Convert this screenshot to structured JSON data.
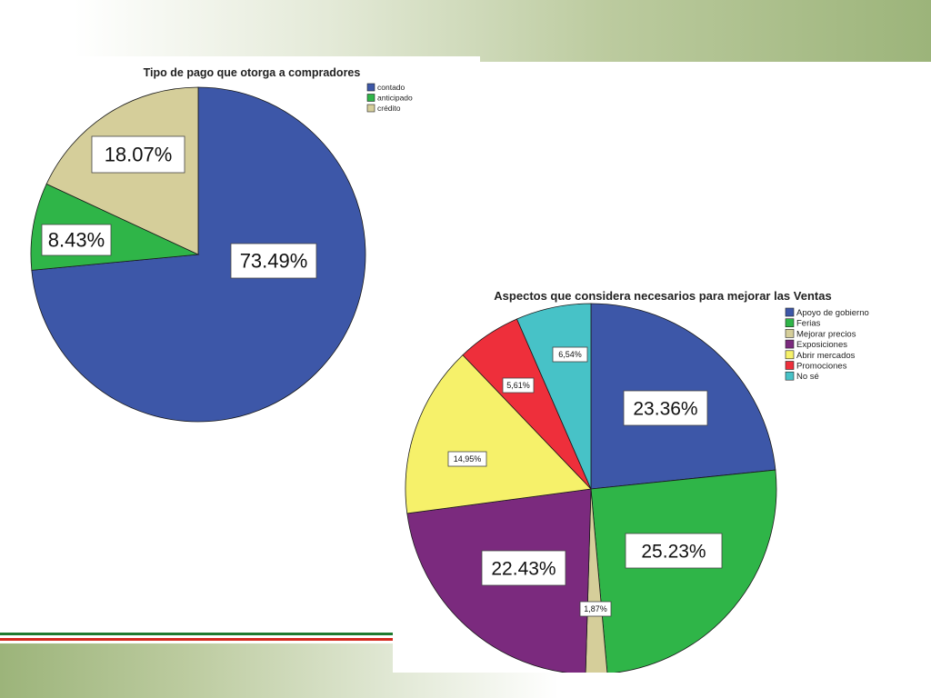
{
  "chart_data": [
    {
      "type": "pie",
      "title": "Tipo de pago que otorga a compradores",
      "categories": [
        "contado",
        "anticipado",
        "crédito"
      ],
      "values": [
        73.49,
        8.43,
        18.07
      ],
      "labels": [
        "73.49%",
        "8.43%",
        "18.07%"
      ],
      "colors": [
        "#3d57a8",
        "#2fb548",
        "#d5ce9a"
      ],
      "legend_position": "top-right"
    },
    {
      "type": "pie",
      "title": "Aspectos que considera necesarios para mejorar las Ventas",
      "categories": [
        "Apoyo de gobierno",
        "Ferias",
        "Mejorar precios",
        "Exposiciones",
        "Abrir mercados",
        "Promociones",
        "No sé"
      ],
      "values": [
        23.36,
        25.23,
        1.87,
        22.43,
        14.95,
        5.61,
        6.54
      ],
      "labels": [
        "23.36%",
        "25.23%",
        "1,87%",
        "22.43%",
        "14,95%",
        "5,61%",
        "6,54%"
      ],
      "colors": [
        "#3d57a8",
        "#2fb548",
        "#d5ce9a",
        "#7b2a7e",
        "#f6f16a",
        "#ee2f3b",
        "#47c2c7"
      ],
      "legend_position": "top-right"
    }
  ]
}
